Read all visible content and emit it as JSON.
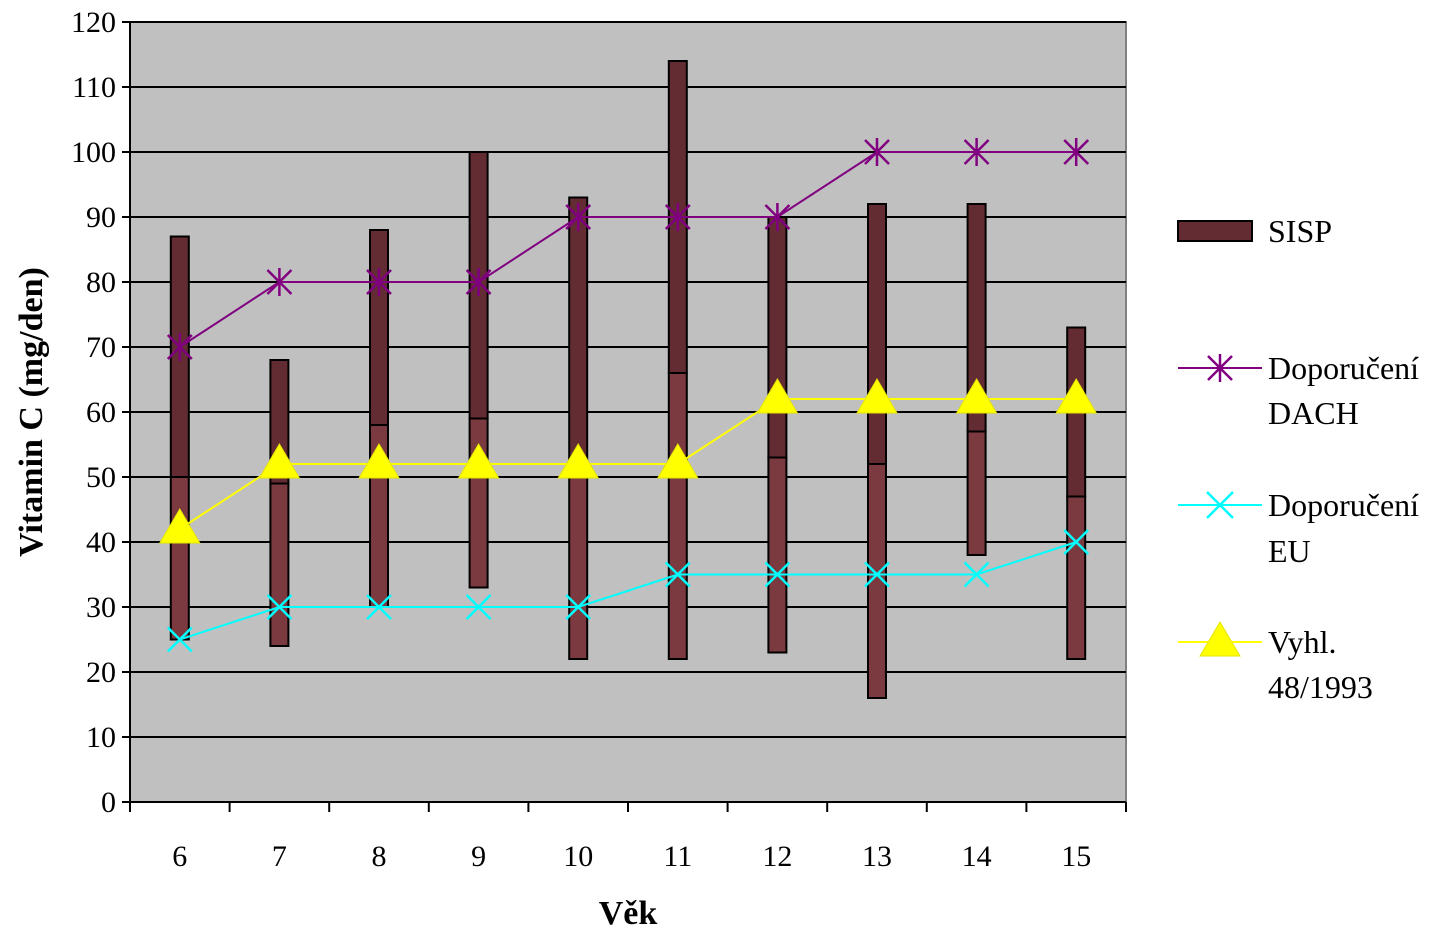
{
  "chart_data": {
    "type": "bar",
    "title": "",
    "xlabel": "Věk",
    "ylabel": "Vitamin C (mg/den)",
    "categories": [
      "6",
      "7",
      "8",
      "9",
      "10",
      "11",
      "12",
      "13",
      "14",
      "15"
    ],
    "ylim": [
      0,
      120
    ],
    "y_ticks": [
      "0",
      "10",
      "20",
      "30",
      "40",
      "50",
      "60",
      "70",
      "80",
      "90",
      "100",
      "110",
      "120"
    ],
    "grid": true,
    "legend_position": "right",
    "plot_background": "#c0c0c0",
    "range_bars": {
      "name": "SISP",
      "color": "#632c33",
      "lower_color": "#7a3a40",
      "low": [
        25,
        24,
        30,
        33,
        22,
        22,
        23,
        16,
        38,
        22
      ],
      "middle": [
        50,
        49,
        58,
        59,
        52,
        66,
        53,
        52,
        57,
        47
      ],
      "high": [
        87,
        68,
        88,
        100,
        93,
        114,
        90,
        92,
        92,
        73
      ]
    },
    "series": [
      {
        "name": "Doporučení DACH",
        "legend_lines": [
          "Doporučení",
          "DACH"
        ],
        "color": "#800080",
        "marker": "asterisk",
        "values": [
          70,
          80,
          80,
          80,
          90,
          90,
          90,
          100,
          100,
          100
        ]
      },
      {
        "name": "Doporučení EU",
        "legend_lines": [
          "Doporučení",
          "EU"
        ],
        "color": "#00ffff",
        "marker": "x",
        "values": [
          25,
          30,
          30,
          30,
          30,
          35,
          35,
          35,
          35,
          40
        ]
      },
      {
        "name": "Vyhl. 48/1993",
        "legend_lines": [
          "Vyhl.",
          "48/1993"
        ],
        "color": "#ffff00",
        "marker": "triangle",
        "values": [
          42,
          52,
          52,
          52,
          52,
          52,
          62,
          62,
          62,
          62
        ]
      }
    ],
    "legend": {
      "sisp": "SISP"
    }
  }
}
